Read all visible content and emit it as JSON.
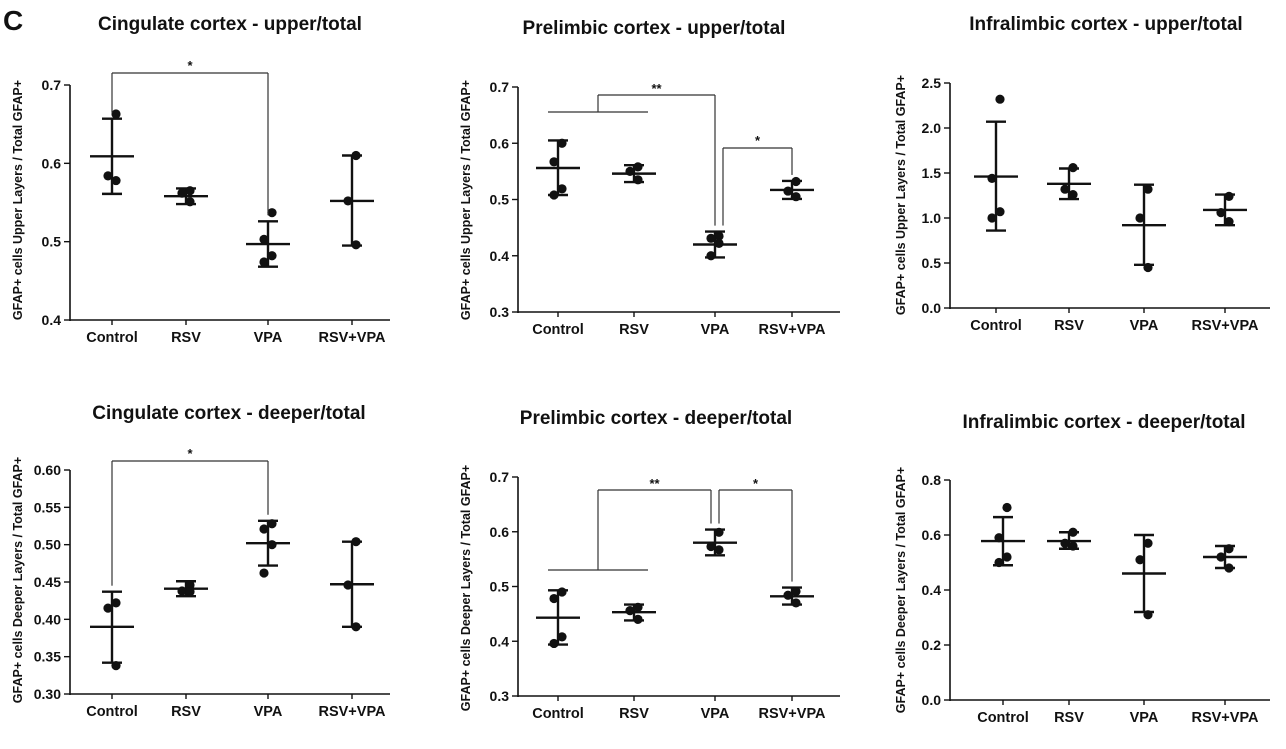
{
  "panel_letter": "C",
  "chart_data": [
    {
      "type": "scatter",
      "title": "Cingulate cortex - upper/total",
      "ylabel": "GFAP+ cells Upper Layers / Total GFAP+",
      "categories": [
        "Control",
        "RSV",
        "VPA",
        "RSV+VPA"
      ],
      "ylim": [
        0.4,
        0.7
      ],
      "yticks": [
        "0.4",
        "0.5",
        "0.6",
        "0.7"
      ],
      "groups": [
        {
          "points": [
            0.663,
            0.584,
            0.578
          ],
          "mean": 0.609,
          "err_low": 0.561,
          "err_high": 0.657
        },
        {
          "points": [
            0.565,
            0.562,
            0.551
          ],
          "mean": 0.558,
          "err_low": 0.548,
          "err_high": 0.568
        },
        {
          "points": [
            0.537,
            0.503,
            0.482,
            0.474
          ],
          "mean": 0.497,
          "err_low": 0.468,
          "err_high": 0.526
        },
        {
          "points": [
            0.61,
            0.552,
            0.496
          ],
          "mean": 0.552,
          "err_low": 0.495,
          "err_high": 0.61
        }
      ],
      "brackets": [
        {
          "from": [
            "Control"
          ],
          "to": [
            "VPA"
          ],
          "label": "*"
        }
      ]
    },
    {
      "type": "scatter",
      "title": "Prelimbic cortex - upper/total",
      "ylabel": "GFAP+ cells Upper Layers / Total GFAP+",
      "categories": [
        "Control",
        "RSV",
        "VPA",
        "RSV+VPA"
      ],
      "ylim": [
        0.3,
        0.7
      ],
      "yticks": [
        "0.3",
        "0.4",
        "0.5",
        "0.6",
        "0.7"
      ],
      "groups": [
        {
          "points": [
            0.6,
            0.567,
            0.519,
            0.508
          ],
          "mean": 0.556,
          "err_low": 0.508,
          "err_high": 0.605
        },
        {
          "points": [
            0.558,
            0.55,
            0.535
          ],
          "mean": 0.546,
          "err_low": 0.531,
          "err_high": 0.561
        },
        {
          "points": [
            0.435,
            0.431,
            0.422,
            0.4
          ],
          "mean": 0.42,
          "err_low": 0.397,
          "err_high": 0.443
        },
        {
          "points": [
            0.532,
            0.515,
            0.505
          ],
          "mean": 0.517,
          "err_low": 0.501,
          "err_high": 0.533
        }
      ],
      "brackets": [
        {
          "from": [
            "Control",
            "RSV"
          ],
          "to": [
            "VPA"
          ],
          "label": "**"
        },
        {
          "from": [
            "VPA"
          ],
          "to": [
            "RSV+VPA"
          ],
          "label": "*"
        }
      ]
    },
    {
      "type": "scatter",
      "title": "Infralimbic cortex - upper/total",
      "ylabel": "GFAP+ cells Upper Layers / Total GFAP+",
      "categories": [
        "Control",
        "RSV",
        "VPA",
        "RSV+VPA"
      ],
      "ylim": [
        0.0,
        2.5
      ],
      "yticks": [
        "0.0",
        "0.5",
        "1.0",
        "1.5",
        "2.0",
        "2.5"
      ],
      "groups": [
        {
          "points": [
            2.32,
            1.44,
            1.07,
            1.0
          ],
          "mean": 1.46,
          "err_low": 0.86,
          "err_high": 2.07
        },
        {
          "points": [
            1.56,
            1.32,
            1.26
          ],
          "mean": 1.38,
          "err_low": 1.21,
          "err_high": 1.55
        },
        {
          "points": [
            1.32,
            1.0,
            0.45
          ],
          "mean": 0.92,
          "err_low": 0.48,
          "err_high": 1.37
        },
        {
          "points": [
            1.24,
            1.06,
            0.96
          ],
          "mean": 1.09,
          "err_low": 0.92,
          "err_high": 1.26
        }
      ],
      "brackets": []
    },
    {
      "type": "scatter",
      "title": "Cingulate cortex - deeper/total",
      "ylabel": "GFAP+ cells Deeper Layers / Total GFAP+",
      "categories": [
        "Control",
        "RSV",
        "VPA",
        "RSV+VPA"
      ],
      "ylim": [
        0.3,
        0.6
      ],
      "yticks": [
        "0.30",
        "0.35",
        "0.40",
        "0.45",
        "0.50",
        "0.55",
        "0.60"
      ],
      "groups": [
        {
          "points": [
            0.422,
            0.415,
            0.338
          ],
          "mean": 0.39,
          "err_low": 0.342,
          "err_high": 0.437
        },
        {
          "points": [
            0.446,
            0.438,
            0.437
          ],
          "mean": 0.441,
          "err_low": 0.431,
          "err_high": 0.451
        },
        {
          "points": [
            0.528,
            0.521,
            0.5,
            0.462
          ],
          "mean": 0.502,
          "err_low": 0.472,
          "err_high": 0.532
        },
        {
          "points": [
            0.504,
            0.446,
            0.39
          ],
          "mean": 0.447,
          "err_low": 0.39,
          "err_high": 0.504
        }
      ],
      "brackets": [
        {
          "from": [
            "Control"
          ],
          "to": [
            "VPA"
          ],
          "label": "*"
        }
      ]
    },
    {
      "type": "scatter",
      "title": "Prelimbic cortex - deeper/total",
      "ylabel": "GFAP+ cells Deeper Layers / Total GFAP+",
      "categories": [
        "Control",
        "RSV",
        "VPA",
        "RSV+VPA"
      ],
      "ylim": [
        0.3,
        0.7
      ],
      "yticks": [
        "0.3",
        "0.4",
        "0.5",
        "0.6",
        "0.7"
      ],
      "groups": [
        {
          "points": [
            0.49,
            0.478,
            0.408,
            0.396
          ],
          "mean": 0.443,
          "err_low": 0.394,
          "err_high": 0.493
        },
        {
          "points": [
            0.462,
            0.456,
            0.44
          ],
          "mean": 0.453,
          "err_low": 0.438,
          "err_high": 0.467
        },
        {
          "points": [
            0.599,
            0.573,
            0.567
          ],
          "mean": 0.58,
          "err_low": 0.557,
          "err_high": 0.604
        },
        {
          "points": [
            0.491,
            0.484,
            0.47
          ],
          "mean": 0.482,
          "err_low": 0.467,
          "err_high": 0.498
        }
      ],
      "brackets": [
        {
          "from": [
            "Control",
            "RSV"
          ],
          "to": [
            "VPA"
          ],
          "label": "**"
        },
        {
          "from": [
            "VPA"
          ],
          "to": [
            "RSV+VPA"
          ],
          "label": "*"
        }
      ]
    },
    {
      "type": "scatter",
      "title": "Infralimbic cortex - deeper/total",
      "ylabel": "GFAP+ cells Deeper Layers / Total GFAP+",
      "categories": [
        "Control",
        "RSV",
        "VPA",
        "RSV+VPA"
      ],
      "ylim": [
        0.0,
        0.8
      ],
      "yticks": [
        "0.0",
        "0.2",
        "0.4",
        "0.6",
        "0.8"
      ],
      "groups": [
        {
          "points": [
            0.7,
            0.59,
            0.52,
            0.5
          ],
          "mean": 0.578,
          "err_low": 0.49,
          "err_high": 0.665
        },
        {
          "points": [
            0.61,
            0.57,
            0.56
          ],
          "mean": 0.578,
          "err_low": 0.55,
          "err_high": 0.61
        },
        {
          "points": [
            0.57,
            0.51,
            0.31
          ],
          "mean": 0.46,
          "err_low": 0.32,
          "err_high": 0.6
        },
        {
          "points": [
            0.55,
            0.52,
            0.48
          ],
          "mean": 0.52,
          "err_low": 0.48,
          "err_high": 0.56
        }
      ],
      "brackets": []
    }
  ]
}
